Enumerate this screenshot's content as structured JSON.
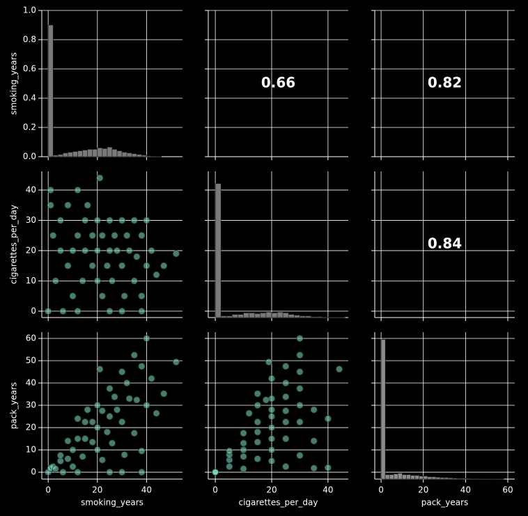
{
  "chart_data": [
    {
      "type": "histogram",
      "xlim": [
        -2.6,
        54.6
      ],
      "xticks": [
        0,
        20,
        40
      ],
      "ylim": [
        0,
        1
      ],
      "yticks": [
        {
          "value": 0,
          "label": "0.0"
        },
        {
          "value": 0.2,
          "label": "0.2"
        },
        {
          "value": 0.4,
          "label": "0.4"
        },
        {
          "value": 0.6,
          "label": "0.6"
        },
        {
          "value": 0.8,
          "label": "0.8"
        },
        {
          "value": 1,
          "label": "1.0"
        }
      ],
      "ylabel": "smoking_years",
      "color": "#7a7a7a",
      "bins": [
        0,
        2,
        4,
        6,
        8,
        10,
        12,
        14,
        16,
        18,
        20,
        22,
        24,
        26,
        28,
        30,
        32,
        34,
        36,
        38,
        40,
        42,
        44,
        46
      ],
      "values": [
        0.9,
        0.01,
        0.015,
        0.025,
        0.03,
        0.035,
        0.04,
        0.045,
        0.05,
        0.05,
        0.06,
        0.055,
        0.065,
        0.05,
        0.04,
        0.03,
        0.025,
        0.02,
        0.015,
        0.01,
        0.005,
        0.003,
        0.002
      ]
    },
    {
      "type": "text",
      "xlim": [
        -2.5,
        47.2
      ],
      "xticks": [
        0,
        20,
        40
      ],
      "ylim": [
        0,
        1
      ],
      "yticks": [
        {
          "value": 0,
          "label": "0.0"
        },
        {
          "value": 0.2,
          "label": "0.2"
        },
        {
          "value": 0.4,
          "label": "0.4"
        },
        {
          "value": 0.6,
          "label": "0.6"
        },
        {
          "value": 0.8,
          "label": "0.8"
        },
        {
          "value": 1,
          "label": "1.0"
        }
      ],
      "annotation": "0.66"
    },
    {
      "type": "text",
      "xlim": [
        -3,
        63.3
      ],
      "xticks": [
        0,
        20,
        40,
        60
      ],
      "ylim": [
        0,
        1
      ],
      "yticks": [
        {
          "value": 0,
          "label": "0.0"
        },
        {
          "value": 0.2,
          "label": "0.2"
        },
        {
          "value": 0.4,
          "label": "0.4"
        },
        {
          "value": 0.6,
          "label": "0.6"
        },
        {
          "value": 0.8,
          "label": "0.8"
        },
        {
          "value": 1,
          "label": "1.0"
        }
      ],
      "annotation": "0.82"
    },
    {
      "type": "scatter",
      "xlim": [
        -2.6,
        54.6
      ],
      "xticks": [
        0,
        20,
        40
      ],
      "ylim": [
        -2.1,
        46.2
      ],
      "yticks": [
        0,
        10,
        20,
        30,
        40
      ],
      "ylabel": "cigarettes_per_day",
      "color": "#7fcdbb",
      "x": [
        0,
        1,
        1,
        2,
        3,
        5,
        5,
        8,
        8,
        10,
        10,
        12,
        12,
        14,
        15,
        15,
        16,
        18,
        18,
        20,
        20,
        20,
        21,
        22,
        22,
        24,
        25,
        25,
        26,
        27,
        28,
        30,
        30,
        31,
        32,
        33,
        35,
        35,
        36,
        38,
        38,
        40,
        40,
        42,
        44,
        47,
        52,
        12,
        25,
        38,
        6,
        30
      ],
      "values": [
        0,
        40,
        35,
        25,
        10,
        20,
        30,
        15,
        35,
        20,
        5,
        25,
        40,
        10,
        20,
        30,
        35,
        15,
        25,
        10,
        20,
        30,
        44,
        5,
        25,
        15,
        20,
        30,
        10,
        25,
        20,
        15,
        30,
        5,
        25,
        20,
        10,
        30,
        18,
        25,
        5,
        15,
        30,
        20,
        12,
        15,
        19,
        0,
        0,
        0,
        0,
        0
      ]
    },
    {
      "type": "histogram",
      "xlim": [
        -2.5,
        47.2
      ],
      "xticks": [
        0,
        20,
        40
      ],
      "ylim": [
        -2.1,
        46.2
      ],
      "yticks": [
        0,
        10,
        20,
        30,
        40
      ],
      "y2lim": [
        0,
        0.95
      ],
      "color": "#7a7a7a",
      "bins": [
        0,
        2,
        4,
        6,
        8,
        10,
        12,
        14,
        16,
        18,
        20,
        22,
        24,
        26,
        28,
        30,
        32,
        34,
        36,
        38,
        40,
        42,
        44,
        46
      ],
      "values": [
        0.87,
        0.01,
        0.01,
        0.02,
        0.02,
        0.03,
        0.03,
        0.025,
        0.03,
        0.035,
        0.03,
        0.035,
        0.03,
        0.02,
        0.015,
        0.01,
        0.01,
        0.005,
        0.005,
        0.003,
        0.002,
        0.002,
        0.002
      ]
    },
    {
      "type": "text",
      "xlim": [
        -3,
        63.3
      ],
      "xticks": [
        0,
        20,
        40,
        60
      ],
      "ylim": [
        -2.1,
        46.2
      ],
      "yticks": [
        0,
        10,
        20,
        30,
        40
      ],
      "annotation": "0.84"
    },
    {
      "type": "scatter",
      "xlim": [
        -2.6,
        54.6
      ],
      "xticks": [
        0,
        20,
        40
      ],
      "ylim": [
        -3.1,
        62.8
      ],
      "yticks": [
        0,
        10,
        20,
        30,
        40,
        50,
        60
      ],
      "xlabel": "smoking_years",
      "ylabel": "pack_years",
      "color": "#7fcdbb",
      "x": [
        0,
        1,
        1,
        2,
        3,
        5,
        5,
        8,
        8,
        10,
        10,
        12,
        12,
        14,
        15,
        15,
        16,
        18,
        18,
        20,
        20,
        20,
        21,
        22,
        22,
        24,
        25,
        25,
        26,
        27,
        28,
        30,
        30,
        31,
        32,
        33,
        35,
        35,
        36,
        38,
        38,
        40,
        40,
        42,
        44,
        47,
        52,
        12,
        25,
        38,
        6,
        30
      ],
      "values": [
        0,
        2,
        1.8,
        2.5,
        1.5,
        5,
        7.5,
        6,
        14,
        10,
        2.5,
        15,
        24,
        7,
        15,
        22.5,
        28,
        13.5,
        22.5,
        10,
        20,
        30,
        46.2,
        5.5,
        27.5,
        18,
        25,
        37.5,
        13,
        33.8,
        28,
        22.5,
        45,
        7.8,
        40,
        33,
        17.5,
        52.5,
        32.4,
        47.5,
        9.5,
        30,
        60,
        42,
        26.4,
        35.2,
        49.4,
        0,
        0,
        0,
        0,
        0
      ]
    },
    {
      "type": "scatter",
      "xlim": [
        -2.5,
        47.2
      ],
      "xticks": [
        0,
        20,
        40
      ],
      "ylim": [
        -3.1,
        62.8
      ],
      "yticks": [
        0,
        10,
        20,
        30,
        40,
        50,
        60
      ],
      "xlabel": "cigarettes_per_day",
      "color": "#7fcdbb",
      "x": [
        0,
        40,
        35,
        25,
        10,
        20,
        30,
        15,
        35,
        20,
        5,
        25,
        40,
        10,
        20,
        30,
        35,
        15,
        25,
        10,
        20,
        30,
        44,
        5,
        25,
        15,
        20,
        30,
        10,
        25,
        20,
        15,
        30,
        5,
        25,
        20,
        10,
        30,
        18,
        25,
        5,
        15,
        30,
        20,
        12,
        15,
        19,
        0,
        0,
        0,
        0,
        0
      ],
      "values": [
        0,
        2,
        1.8,
        2.5,
        1.5,
        5,
        7.5,
        6,
        14,
        10,
        2.5,
        15,
        24,
        7,
        15,
        22.5,
        28,
        13.5,
        22.5,
        10,
        20,
        30,
        46.2,
        5.5,
        27.5,
        18,
        25,
        37.5,
        13,
        33.8,
        28,
        22.5,
        45,
        7.8,
        40,
        33,
        17.5,
        52.5,
        32.4,
        47.5,
        9.5,
        30,
        60,
        42,
        26.4,
        35.2,
        49.4,
        0,
        0,
        0,
        0,
        0
      ]
    },
    {
      "type": "histogram",
      "xlim": [
        -3,
        63.3
      ],
      "xticks": [
        0,
        20,
        40,
        60
      ],
      "ylim": [
        -3.1,
        62.8
      ],
      "yticks": [
        0,
        10,
        20,
        30,
        40,
        50,
        60
      ],
      "y2lim": [
        0,
        1
      ],
      "xlabel": "pack_years",
      "color": "#8c8c8c",
      "bins": [
        0,
        2,
        4,
        6,
        8,
        10,
        12,
        14,
        16,
        18,
        20,
        22,
        24,
        26,
        28,
        30,
        32,
        34,
        36,
        38,
        40,
        42,
        44,
        46,
        48,
        50,
        52,
        54,
        56,
        58
      ],
      "values": [
        0.95,
        0.03,
        0.03,
        0.035,
        0.04,
        0.03,
        0.03,
        0.025,
        0.025,
        0.02,
        0.02,
        0.015,
        0.015,
        0.012,
        0.01,
        0.01,
        0.008,
        0.006,
        0.005,
        0.005,
        0.004,
        0.003,
        0.003,
        0.002,
        0.002,
        0.001,
        0.001,
        0.001,
        0.001
      ]
    }
  ]
}
